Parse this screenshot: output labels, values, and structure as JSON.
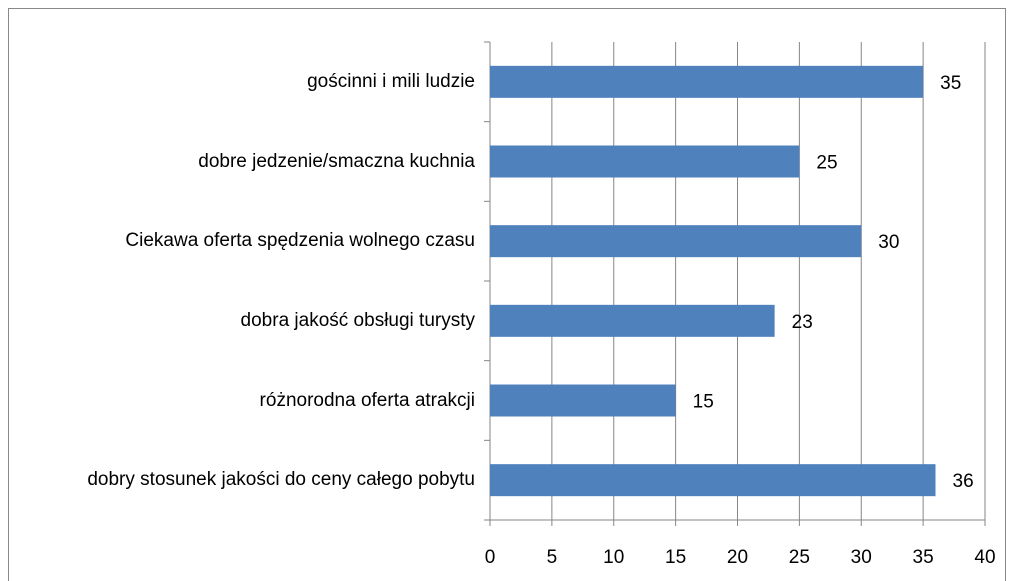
{
  "chart_data": {
    "type": "barh",
    "categories": [
      "gościnni i mili ludzie",
      "dobre jedzenie/smaczna kuchnia",
      "Ciekawa oferta spędzenia wolnego czasu",
      "dobra jakość obsługi turysty",
      "różnorodna oferta atrakcji",
      "dobry stosunek jakości do ceny całego pobytu"
    ],
    "values": [
      35,
      25,
      30,
      23,
      15,
      36
    ],
    "color": "#4f81bd",
    "xlim": [
      0,
      40
    ],
    "xticks": [
      0,
      5,
      10,
      15,
      20,
      25,
      30,
      35,
      40
    ],
    "grid": true
  }
}
